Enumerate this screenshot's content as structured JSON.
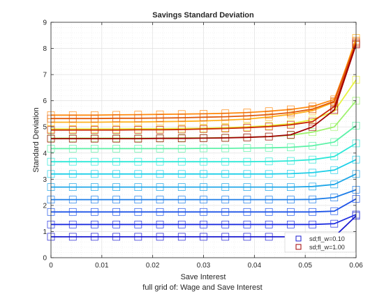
{
  "chart_data": {
    "type": "line",
    "title": "Savings Standard Deviation",
    "xlabel": "Save Interest",
    "ylabel": "Standard Deviation",
    "caption": "full grid of: Wage and Save Interest",
    "xlim": [
      0,
      0.06
    ],
    "ylim": [
      0,
      9
    ],
    "xticks": [
      0,
      0.01,
      0.02,
      0.03,
      0.04,
      0.05,
      0.06
    ],
    "xtick_labels": [
      "0",
      "0.01",
      "0.02",
      "0.03",
      "0.04",
      "0.05",
      "0.06"
    ],
    "yticks": [
      0,
      1,
      2,
      3,
      4,
      5,
      6,
      7,
      8,
      9
    ],
    "ytick_labels": [
      "0",
      "1",
      "2",
      "3",
      "4",
      "5",
      "6",
      "7",
      "8",
      "9"
    ],
    "grid": true,
    "minor_grid": true,
    "legend_position": "bottom-right",
    "marker": "square",
    "x": [
      0,
      0.00429,
      0.00857,
      0.01286,
      0.01714,
      0.02143,
      0.02571,
      0.03,
      0.03429,
      0.03857,
      0.04286,
      0.04714,
      0.05143,
      0.05571,
      0.06
    ],
    "series": [
      {
        "name": "sd;fl_w=0.10",
        "color": "#1a1acf",
        "values": [
          0.8,
          0.8,
          0.8,
          0.8,
          0.8,
          0.8,
          0.8,
          0.8,
          0.8,
          0.8,
          0.8,
          0.8,
          0.8,
          0.8,
          1.6
        ]
      },
      {
        "name": "",
        "color": "#1e2ee0",
        "values": [
          1.27,
          1.27,
          1.27,
          1.27,
          1.27,
          1.27,
          1.27,
          1.27,
          1.27,
          1.27,
          1.27,
          1.27,
          1.27,
          1.3,
          1.65
        ]
      },
      {
        "name": "",
        "color": "#1f55e8",
        "values": [
          1.75,
          1.75,
          1.75,
          1.75,
          1.75,
          1.75,
          1.75,
          1.75,
          1.75,
          1.75,
          1.75,
          1.75,
          1.75,
          1.78,
          2.25
        ]
      },
      {
        "name": "",
        "color": "#1f7ee8",
        "values": [
          2.22,
          2.22,
          2.22,
          2.22,
          2.22,
          2.22,
          2.22,
          2.22,
          2.22,
          2.22,
          2.22,
          2.22,
          2.23,
          2.3,
          2.6
        ]
      },
      {
        "name": "",
        "color": "#1ea6e8",
        "values": [
          2.7,
          2.7,
          2.7,
          2.7,
          2.7,
          2.7,
          2.7,
          2.7,
          2.7,
          2.7,
          2.7,
          2.7,
          2.72,
          2.8,
          3.2
        ]
      },
      {
        "name": "",
        "color": "#1ecfe8",
        "values": [
          3.2,
          3.2,
          3.2,
          3.2,
          3.2,
          3.2,
          3.2,
          3.2,
          3.2,
          3.2,
          3.2,
          3.21,
          3.25,
          3.35,
          3.75
        ]
      },
      {
        "name": "",
        "color": "#2ee8d8",
        "values": [
          3.67,
          3.67,
          3.67,
          3.67,
          3.67,
          3.67,
          3.67,
          3.67,
          3.67,
          3.67,
          3.68,
          3.7,
          3.75,
          3.87,
          4.37
        ]
      },
      {
        "name": "",
        "color": "#5ef2a8",
        "values": [
          4.17,
          4.17,
          4.17,
          4.17,
          4.17,
          4.17,
          4.17,
          4.18,
          4.18,
          4.19,
          4.2,
          4.22,
          4.28,
          4.42,
          5.05
        ]
      },
      {
        "name": "",
        "color": "#9ef26e",
        "values": [
          4.57,
          4.57,
          4.57,
          4.57,
          4.57,
          4.57,
          4.58,
          4.58,
          4.59,
          4.6,
          4.63,
          4.68,
          4.8,
          5.0,
          6.0
        ]
      },
      {
        "name": "",
        "color": "#e8f23e",
        "values": [
          4.92,
          4.92,
          4.92,
          4.92,
          4.93,
          4.93,
          4.94,
          4.95,
          4.97,
          5.0,
          5.05,
          5.12,
          5.28,
          5.6,
          6.8
        ]
      },
      {
        "name": "",
        "color": "#ffb21e",
        "values": [
          5.18,
          5.18,
          5.18,
          5.19,
          5.19,
          5.2,
          5.21,
          5.23,
          5.26,
          5.3,
          5.38,
          5.48,
          5.62,
          5.95,
          8.4
        ]
      },
      {
        "name": "",
        "color": "#ff8a10",
        "values": [
          5.45,
          5.45,
          5.45,
          5.46,
          5.47,
          5.48,
          5.49,
          5.5,
          5.52,
          5.55,
          5.6,
          5.67,
          5.78,
          6.05,
          8.3
        ]
      },
      {
        "name": "",
        "color": "#e05a0a",
        "values": [
          5.32,
          5.32,
          5.32,
          5.33,
          5.33,
          5.34,
          5.35,
          5.37,
          5.39,
          5.42,
          5.47,
          5.55,
          5.68,
          5.98,
          8.25
        ]
      },
      {
        "name": "",
        "color": "#cc2a05",
        "values": [
          4.88,
          4.88,
          4.88,
          4.88,
          4.89,
          4.89,
          4.9,
          4.92,
          4.94,
          4.97,
          5.01,
          5.08,
          5.2,
          5.78,
          8.2
        ]
      },
      {
        "name": "sd;fl_w=1.00",
        "color": "#a00000",
        "values": [
          4.55,
          4.55,
          4.55,
          4.55,
          4.55,
          4.56,
          4.56,
          4.57,
          4.58,
          4.6,
          4.63,
          4.7,
          5.0,
          5.65,
          8.15
        ]
      }
    ]
  }
}
